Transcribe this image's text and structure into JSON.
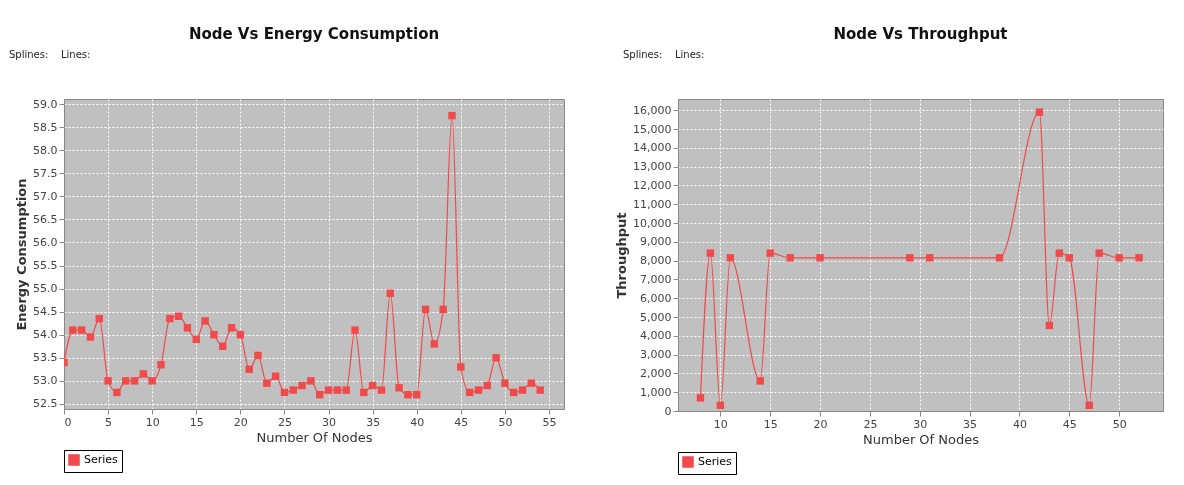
{
  "chart_data": [
    {
      "type": "line",
      "title": "Node Vs  Energy Consumption",
      "xlabel": "Number Of Nodes",
      "ylabel": "Energy Consumption",
      "annotations": [
        "Splines:",
        "Lines:"
      ],
      "series": [
        {
          "name": "Series",
          "color": "#f04a4a",
          "x": [
            0,
            1,
            2,
            3,
            4,
            5,
            6,
            7,
            8,
            9,
            10,
            11,
            12,
            13,
            14,
            15,
            16,
            17,
            18,
            19,
            20,
            21,
            22,
            23,
            24,
            25,
            26,
            27,
            28,
            29,
            30,
            31,
            32,
            33,
            34,
            35,
            36,
            37,
            38,
            39,
            40,
            41,
            42,
            43,
            44,
            45,
            46,
            47,
            48,
            49,
            50,
            51,
            52,
            53,
            54
          ],
          "values": [
            53.4,
            54.1,
            54.1,
            53.95,
            54.35,
            53.0,
            52.75,
            53.0,
            53.0,
            53.15,
            53.0,
            53.35,
            54.35,
            54.4,
            54.15,
            53.9,
            54.3,
            54.0,
            53.75,
            54.15,
            54.0,
            53.25,
            53.55,
            52.95,
            53.1,
            52.75,
            52.8,
            52.9,
            53.0,
            52.7,
            52.8,
            52.8,
            52.8,
            54.1,
            52.75,
            52.9,
            52.8,
            54.9,
            52.85,
            52.7,
            52.7,
            54.55,
            53.8,
            54.55,
            58.75,
            53.3,
            52.75,
            52.8,
            52.9,
            53.5,
            52.95,
            52.75,
            52.8,
            52.95,
            52.8
          ]
        }
      ],
      "xlim": [
        0,
        56.7
      ],
      "xticks": [
        0,
        5,
        10,
        15,
        20,
        25,
        30,
        35,
        40,
        45,
        50,
        55
      ],
      "ylim": [
        52.39,
        59.11
      ],
      "yticks": [
        {
          "value": 52.5,
          "label": "52.5"
        },
        {
          "value": 53,
          "label": "53.0"
        },
        {
          "value": 53.5,
          "label": "53.5"
        },
        {
          "value": 54,
          "label": "54.0"
        },
        {
          "value": 54.5,
          "label": "54.5"
        },
        {
          "value": 55,
          "label": "55.0"
        },
        {
          "value": 55.5,
          "label": "55.5"
        },
        {
          "value": 56,
          "label": "56.0"
        },
        {
          "value": 56.5,
          "label": "56.5"
        },
        {
          "value": 57,
          "label": "57.0"
        },
        {
          "value": 57.5,
          "label": "57.5"
        },
        {
          "value": 58,
          "label": "58.0"
        },
        {
          "value": 58.5,
          "label": "58.5"
        },
        {
          "value": 59,
          "label": "59.0"
        }
      ],
      "grid": true,
      "legend": "bottom",
      "marker": "square",
      "line_style": "solid"
    },
    {
      "type": "line",
      "title": "Node Vs Throughput",
      "xlabel": "Number Of Nodes",
      "ylabel": "Throughput",
      "annotations": [
        "Splines:",
        "Lines:"
      ],
      "series": [
        {
          "name": "Series",
          "color": "#f04a4a",
          "x": [
            8,
            9,
            10,
            11,
            14,
            15,
            17,
            20,
            29,
            31,
            38,
            42,
            43,
            44,
            45,
            47,
            48,
            50,
            52
          ],
          "values": [
            700,
            8400,
            300,
            8150,
            1600,
            8400,
            8150,
            8150,
            8150,
            8150,
            8150,
            15900,
            4550,
            8400,
            8150,
            300,
            8400,
            8150,
            8150
          ]
        }
      ],
      "xlim": [
        5.75,
        54.4
      ],
      "xticks": [
        10,
        15,
        20,
        25,
        30,
        35,
        40,
        45,
        50
      ],
      "ylim": [
        0,
        16600
      ],
      "yticks": [
        0,
        {
          "value": 1000,
          "label": "1,000"
        },
        {
          "value": 2000,
          "label": "2,000"
        },
        {
          "value": 3000,
          "label": "3,000"
        },
        {
          "value": 4000,
          "label": "4,000"
        },
        {
          "value": 5000,
          "label": "5,000"
        },
        {
          "value": 6000,
          "label": "6,000"
        },
        {
          "value": 7000,
          "label": "7,000"
        },
        {
          "value": 8000,
          "label": "8,000"
        },
        {
          "value": 9000,
          "label": "9,000"
        },
        {
          "value": 10000,
          "label": "10,000"
        },
        {
          "value": 11000,
          "label": "11,000"
        },
        {
          "value": 12000,
          "label": "12,000"
        },
        {
          "value": 13000,
          "label": "13,000"
        },
        {
          "value": 14000,
          "label": "14,000"
        },
        {
          "value": 15000,
          "label": "15,000"
        },
        {
          "value": 16000,
          "label": "16,000"
        }
      ],
      "grid": true,
      "legend": "bottom",
      "marker": "square",
      "line_style": "solid"
    }
  ]
}
